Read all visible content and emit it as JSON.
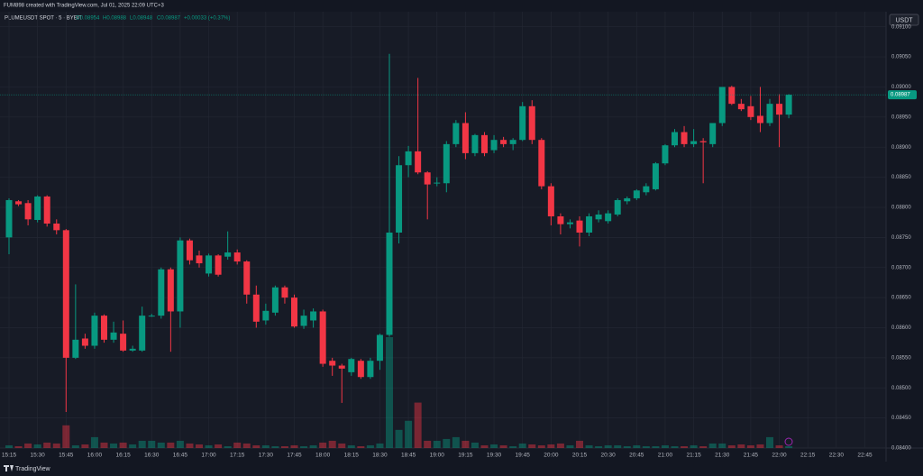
{
  "caption": "FUM898 created with TradingView.com, Jul 01, 2025 22:09 UTC+3",
  "chart_data": {
    "type": "candlestick",
    "symbol": "PLUMEUSDT SPOT · 5 · BYBIT",
    "ohlc_legend": [
      "O0.08954",
      "H0.08988",
      "L0.08948",
      "C0.08987",
      "+0.00033 (+0.37%)"
    ],
    "currency": "USDT",
    "last_price_label": "0.08987",
    "up_color": "#089981",
    "down_color": "#f23645",
    "grid": true,
    "ylim": [
      0.084,
      0.09125
    ],
    "yticks": [
      {
        "value": 0.084,
        "label": "0.08400"
      },
      {
        "value": 0.0845,
        "label": "0.08450"
      },
      {
        "value": 0.085,
        "label": "0.08500"
      },
      {
        "value": 0.0855,
        "label": "0.08550"
      },
      {
        "value": 0.086,
        "label": "0.08600"
      },
      {
        "value": 0.0865,
        "label": "0.08650"
      },
      {
        "value": 0.087,
        "label": "0.08700"
      },
      {
        "value": 0.0875,
        "label": "0.08750"
      },
      {
        "value": 0.088,
        "label": "0.08800"
      },
      {
        "value": 0.0885,
        "label": "0.08850"
      },
      {
        "value": 0.089,
        "label": "0.08900"
      },
      {
        "value": 0.0895,
        "label": "0.08950"
      },
      {
        "value": 0.09,
        "label": "0.09000"
      },
      {
        "value": 0.0905,
        "label": "0.09050"
      },
      {
        "value": 0.091,
        "label": "0.09100"
      }
    ],
    "xticks": [
      "15:15",
      "15:30",
      "15:45",
      "16:00",
      "16:15",
      "16:30",
      "16:45",
      "17:00",
      "17:15",
      "17:30",
      "17:45",
      "18:00",
      "18:15",
      "18:30",
      "18:45",
      "19:00",
      "19:15",
      "19:30",
      "19:45",
      "20:00",
      "20:15",
      "20:30",
      "20:45",
      "21:00",
      "21:15",
      "21:30",
      "21:45",
      "22:00",
      "22:15",
      "22:30",
      "22:45"
    ],
    "open": [
      0.0875,
      0.0881,
      0.08807,
      0.08779,
      0.08818,
      0.08773,
      0.08762,
      0.0855,
      0.08582,
      0.0857,
      0.0862,
      0.0858,
      0.0859,
      0.08562,
      0.08562,
      0.0862,
      0.0862,
      0.08697,
      0.08627,
      0.08745,
      0.0872,
      0.0869,
      0.0872,
      0.08718,
      0.08725,
      0.0871,
      0.08655,
      0.08612,
      0.08625,
      0.08667,
      0.0865,
      0.08603,
      0.08612,
      0.08627,
      0.08545,
      0.08537,
      0.08526,
      0.08545,
      0.08518,
      0.08545,
      0.08588,
      0.08758,
      0.0887,
      0.08893,
      0.08858,
      0.0884,
      0.0884,
      0.08905,
      0.0894,
      0.0889,
      0.0892,
      0.08895,
      0.08912,
      0.08905,
      0.08912,
      0.08968,
      0.08912,
      0.08835,
      0.08785,
      0.08772,
      0.08778,
      0.08758,
      0.0878,
      0.08777,
      0.08788,
      0.0881,
      0.08815,
      0.08825,
      0.0883,
      0.08873,
      0.08903,
      0.08925,
      0.08905,
      0.0891,
      0.08905,
      0.0894,
      0.09,
      0.08972,
      0.08968,
      0.08952,
      0.0894,
      0.08972,
      0.08954
    ],
    "high": [
      0.08815,
      0.08812,
      0.08812,
      0.0882,
      0.0882,
      0.0878,
      0.08764,
      0.08672,
      0.0859,
      0.08625,
      0.08622,
      0.0861,
      0.08612,
      0.0857,
      0.08635,
      0.08623,
      0.087,
      0.087,
      0.0875,
      0.08748,
      0.08728,
      0.08723,
      0.08722,
      0.0876,
      0.0873,
      0.08712,
      0.0867,
      0.0864,
      0.0867,
      0.0867,
      0.08655,
      0.0863,
      0.08632,
      0.0863,
      0.0855,
      0.0854,
      0.0855,
      0.08548,
      0.0855,
      0.0859,
      0.09055,
      0.08885,
      0.08902,
      0.09015,
      0.0886,
      0.0885,
      0.0891,
      0.08945,
      0.08958,
      0.08922,
      0.08925,
      0.0892,
      0.08917,
      0.08915,
      0.08975,
      0.08978,
      0.08915,
      0.0884,
      0.0879,
      0.0878,
      0.08785,
      0.0879,
      0.08795,
      0.08795,
      0.08815,
      0.08818,
      0.0883,
      0.0884,
      0.08875,
      0.08905,
      0.0893,
      0.08935,
      0.0893,
      0.08915,
      0.0894,
      0.09,
      0.09002,
      0.0898,
      0.08985,
      0.09,
      0.0898,
      0.08988,
      0.08988
    ],
    "low": [
      0.08722,
      0.08802,
      0.0877,
      0.08775,
      0.08768,
      0.08755,
      0.0846,
      0.08548,
      0.08565,
      0.08565,
      0.08575,
      0.08575,
      0.0856,
      0.0856,
      0.0856,
      0.08618,
      0.08615,
      0.0856,
      0.086,
      0.08705,
      0.087,
      0.08685,
      0.08685,
      0.08713,
      0.08705,
      0.0864,
      0.086,
      0.08605,
      0.0862,
      0.0864,
      0.086,
      0.08598,
      0.086,
      0.08535,
      0.0852,
      0.08475,
      0.0852,
      0.08515,
      0.08515,
      0.0853,
      0.08585,
      0.0874,
      0.0885,
      0.08855,
      0.0878,
      0.08835,
      0.08825,
      0.089,
      0.0888,
      0.08885,
      0.08885,
      0.0889,
      0.089,
      0.08895,
      0.0891,
      0.08905,
      0.0883,
      0.0877,
      0.08755,
      0.08765,
      0.08735,
      0.08752,
      0.08775,
      0.08773,
      0.08785,
      0.08805,
      0.08812,
      0.0882,
      0.08828,
      0.0887,
      0.089,
      0.089,
      0.089,
      0.0884,
      0.089,
      0.08935,
      0.0897,
      0.0896,
      0.08945,
      0.08925,
      0.08935,
      0.089,
      0.08948
    ],
    "close": [
      0.08812,
      0.08805,
      0.0878,
      0.08818,
      0.08773,
      0.08762,
      0.0855,
      0.0858,
      0.0857,
      0.0862,
      0.0858,
      0.08592,
      0.08562,
      0.08565,
      0.0862,
      0.0862,
      0.08697,
      0.08627,
      0.08745,
      0.08712,
      0.08707,
      0.0872,
      0.08688,
      0.08725,
      0.0871,
      0.08655,
      0.0861,
      0.08628,
      0.08667,
      0.0865,
      0.08602,
      0.0862,
      0.08627,
      0.0854,
      0.08537,
      0.08532,
      0.08548,
      0.08518,
      0.08545,
      0.08588,
      0.08758,
      0.0887,
      0.08893,
      0.08858,
      0.08838,
      0.08841,
      0.08905,
      0.0894,
      0.0889,
      0.0892,
      0.0889,
      0.08912,
      0.08905,
      0.08912,
      0.08968,
      0.08912,
      0.08835,
      0.08785,
      0.08772,
      0.08775,
      0.08758,
      0.08785,
      0.08788,
      0.0879,
      0.08812,
      0.08815,
      0.08828,
      0.08835,
      0.08873,
      0.08903,
      0.08925,
      0.08905,
      0.0891,
      0.08908,
      0.0894,
      0.09,
      0.08972,
      0.08963,
      0.0895,
      0.0894,
      0.08972,
      0.08954,
      0.08987
    ],
    "volume": [
      3,
      2,
      5,
      4,
      6,
      5,
      25,
      3,
      4,
      12,
      6,
      5,
      6,
      4,
      8,
      8,
      6,
      6,
      8,
      5,
      4,
      3,
      4,
      2,
      6,
      5,
      3,
      3,
      2,
      2,
      3,
      2,
      3,
      6,
      8,
      5,
      3,
      2,
      3,
      5,
      122,
      20,
      30,
      50,
      8,
      8,
      10,
      12,
      8,
      6,
      3,
      4,
      3,
      2,
      5,
      4,
      3,
      4,
      5,
      3,
      8,
      3,
      2,
      3,
      3,
      2,
      3,
      2,
      2,
      3,
      2,
      2,
      3,
      2,
      5,
      5,
      3,
      4,
      3,
      4,
      12,
      3,
      2
    ]
  },
  "footer": {
    "brand": "TradingView"
  }
}
